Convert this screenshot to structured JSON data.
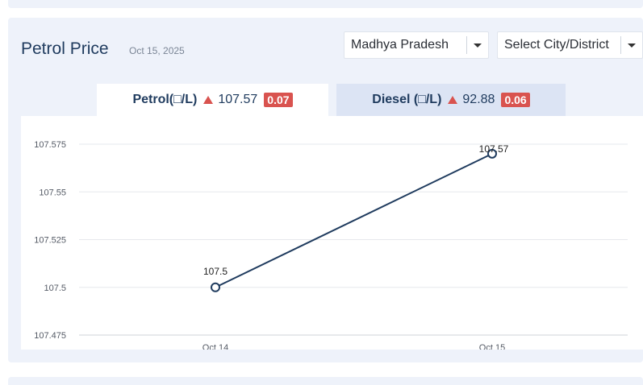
{
  "header": {
    "title": "Petrol Price",
    "date": "Oct 15, 2025"
  },
  "filters": {
    "state": "Madhya Pradesh",
    "city": "Select City/District"
  },
  "tabs": [
    {
      "fuel": "Petrol(□/L)",
      "price": "107.57",
      "change": "0.07"
    },
    {
      "fuel": "Diesel (□/L)",
      "price": "92.88",
      "change": "0.06"
    }
  ],
  "colors": {
    "line": "#1f3b5e",
    "increase": "#d9534f",
    "tab_active_bg": "#ffffff",
    "tab_inactive_bg": "#dce4f4"
  },
  "chart_data": {
    "type": "line",
    "categories": [
      "Oct 14",
      "Oct 15"
    ],
    "values": [
      107.5,
      107.57
    ],
    "data_labels": [
      "107.5",
      "107.57"
    ],
    "y_ticks": [
      107.475,
      107.5,
      107.525,
      107.55,
      107.575
    ],
    "y_tick_labels": [
      "107.475",
      "107.5",
      "107.525",
      "107.55",
      "107.575"
    ],
    "ylim": [
      107.475,
      107.575
    ],
    "grid": true,
    "legend": "none"
  }
}
